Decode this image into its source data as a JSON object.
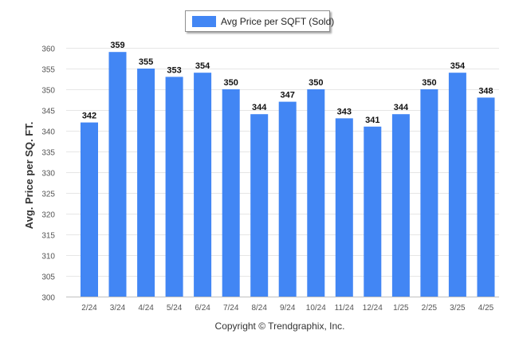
{
  "chart_data": {
    "type": "bar",
    "title": "",
    "xlabel": "",
    "ylabel": "Avg. Price per SQ. FT.",
    "categories": [
      "2/24",
      "3/24",
      "4/24",
      "5/24",
      "6/24",
      "7/24",
      "8/24",
      "9/24",
      "10/24",
      "11/24",
      "12/24",
      "1/25",
      "2/25",
      "3/25",
      "4/25"
    ],
    "series": [
      {
        "name": "Avg Price per SQFT (Sold)",
        "values": [
          342,
          359,
          355,
          353,
          354,
          350,
          344,
          347,
          350,
          343,
          341,
          344,
          350,
          354,
          348
        ],
        "color": "#4286f4"
      }
    ],
    "ylim": [
      300,
      360
    ],
    "yticks": [
      300,
      305,
      310,
      315,
      320,
      325,
      330,
      335,
      340,
      345,
      350,
      355,
      360
    ],
    "grid": true,
    "legend_position": "top-center",
    "data_labels": true
  },
  "footer": {
    "copyright": "Copyright © Trendgraphix, Inc."
  }
}
